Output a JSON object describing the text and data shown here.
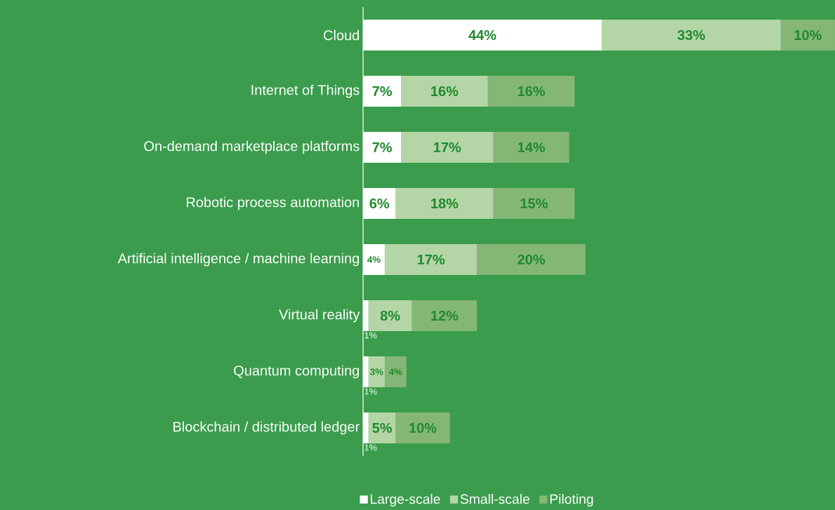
{
  "chart_data": {
    "type": "bar",
    "orientation": "horizontal",
    "stacked": true,
    "data_labels": true,
    "legend": "bottom",
    "tick_labels": "y",
    "xlim": [
      0,
      87
    ],
    "categories": [
      "Cloud",
      "Internet of Things",
      "On-demand marketplace platforms",
      "Robotic process automation",
      "Artificial intelligence / machine learning",
      "Virtual reality",
      "Quantum computing",
      "Blockchain / distributed ledger"
    ],
    "series": [
      {
        "name": "Large-scale",
        "color": "#ffffff",
        "values": [
          44,
          7,
          7,
          6,
          4,
          1,
          1,
          1
        ],
        "value_labels": [
          "44%",
          "7%",
          "7%",
          "6%",
          "4%",
          "1%",
          "1%",
          "1%"
        ]
      },
      {
        "name": "Small-scale",
        "color": "#b4d6a6",
        "values": [
          33,
          16,
          17,
          18,
          17,
          8,
          3,
          5
        ],
        "value_labels": [
          "33%",
          "16%",
          "17%",
          "18%",
          "17%",
          "8%",
          "3%",
          "5%"
        ]
      },
      {
        "name": "Piloting",
        "color": "#84b775",
        "values": [
          10,
          16,
          14,
          15,
          20,
          12,
          4,
          10
        ],
        "value_labels": [
          "10%",
          "16%",
          "14%",
          "15%",
          "20%",
          "12%",
          "4%",
          "10%"
        ]
      }
    ]
  }
}
